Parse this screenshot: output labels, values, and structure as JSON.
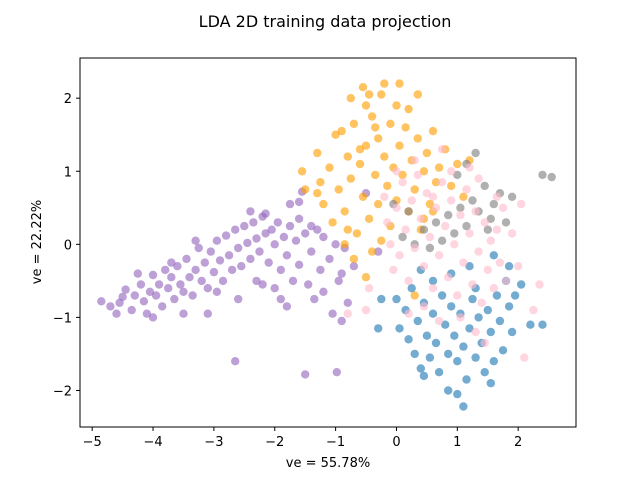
{
  "chart_data": {
    "type": "scatter",
    "title": "LDA 2D training data projection",
    "xlabel": "ve = 55.78%",
    "ylabel": "ve = 22.22%",
    "xlim": [
      -5.2,
      2.95
    ],
    "ylim": [
      -2.5,
      2.55
    ],
    "xticks": [
      -5,
      -4,
      -3,
      -2,
      -1,
      0,
      1,
      2
    ],
    "yticks": [
      -2,
      -1,
      0,
      1,
      2
    ],
    "grid": false,
    "legend": "none",
    "series": [
      {
        "color": "#9467bd",
        "points": [
          [
            -4.85,
            -0.78
          ],
          [
            -4.7,
            -0.85
          ],
          [
            -4.55,
            -0.8
          ],
          [
            -4.5,
            -0.72
          ],
          [
            -4.45,
            -0.62
          ],
          [
            -4.35,
            -0.9
          ],
          [
            -4.3,
            -0.7
          ],
          [
            -4.2,
            -0.55
          ],
          [
            -4.15,
            -0.78
          ],
          [
            -4.1,
            -0.95
          ],
          [
            -4.05,
            -0.65
          ],
          [
            -4.0,
            -0.42
          ],
          [
            -3.95,
            -0.7
          ],
          [
            -3.9,
            -0.55
          ],
          [
            -3.85,
            -0.85
          ],
          [
            -3.8,
            -0.35
          ],
          [
            -3.75,
            -0.6
          ],
          [
            -3.7,
            -0.45
          ],
          [
            -3.65,
            -0.75
          ],
          [
            -3.6,
            -0.3
          ],
          [
            -3.55,
            -0.55
          ],
          [
            -3.5,
            -0.65
          ],
          [
            -3.45,
            -0.2
          ],
          [
            -3.4,
            -0.45
          ],
          [
            -3.35,
            -0.7
          ],
          [
            -3.3,
            -0.35
          ],
          [
            -3.25,
            -0.05
          ],
          [
            -3.2,
            -0.5
          ],
          [
            -3.15,
            -0.25
          ],
          [
            -3.1,
            -0.6
          ],
          [
            -3.05,
            -0.1
          ],
          [
            -3.0,
            -0.38
          ],
          [
            -2.95,
            0.05
          ],
          [
            -2.9,
            -0.22
          ],
          [
            -2.85,
            -0.5
          ],
          [
            -2.8,
            0.12
          ],
          [
            -2.75,
            -0.15
          ],
          [
            -2.7,
            -0.35
          ],
          [
            -2.65,
            0.2
          ],
          [
            -2.6,
            -0.05
          ],
          [
            -2.55,
            -0.3
          ],
          [
            -2.5,
            0.25
          ],
          [
            -2.45,
            0.02
          ],
          [
            -2.4,
            -0.2
          ],
          [
            -2.35,
            0.3
          ],
          [
            -2.3,
            0.08
          ],
          [
            -2.25,
            -0.1
          ],
          [
            -2.2,
            0.38
          ],
          [
            -2.15,
            0.15
          ],
          [
            -2.1,
            -0.25
          ],
          [
            -2.05,
            0.2
          ],
          [
            -2.0,
            0.0
          ],
          [
            -1.95,
            0.3
          ],
          [
            -1.9,
            -0.35
          ],
          [
            -1.85,
            0.1
          ],
          [
            -1.8,
            -0.15
          ],
          [
            -1.75,
            0.25
          ],
          [
            -1.7,
            -0.5
          ],
          [
            -1.65,
            0.05
          ],
          [
            -1.6,
            -0.28
          ],
          [
            -1.5,
            0.15
          ],
          [
            -1.45,
            -0.55
          ],
          [
            -1.4,
            -0.1
          ],
          [
            -1.3,
            0.2
          ],
          [
            -1.25,
            -0.35
          ],
          [
            -1.2,
            -0.65
          ],
          [
            -1.1,
            -0.2
          ],
          [
            -1.05,
            -0.95
          ],
          [
            -0.95,
            -0.5
          ],
          [
            -0.9,
            -1.05
          ],
          [
            -0.85,
            -0.05
          ],
          [
            -2.65,
            -1.6
          ],
          [
            -1.5,
            -1.78
          ],
          [
            -0.98,
            -1.75
          ],
          [
            -3.1,
            -0.95
          ],
          [
            -4.0,
            -1.0
          ],
          [
            -3.7,
            -0.25
          ],
          [
            -3.3,
            0.05
          ],
          [
            -2.95,
            -0.65
          ],
          [
            -2.6,
            -0.75
          ],
          [
            -2.3,
            -0.5
          ],
          [
            -2.0,
            -0.6
          ],
          [
            -1.8,
            -0.85
          ],
          [
            -3.5,
            -0.95
          ],
          [
            -4.25,
            -0.4
          ],
          [
            -4.6,
            -0.95
          ],
          [
            -2.4,
            0.45
          ],
          [
            -2.15,
            0.42
          ],
          [
            -1.6,
            0.35
          ],
          [
            -1.4,
            0.25
          ],
          [
            -1.2,
            0.1
          ],
          [
            -1.0,
            0.0
          ],
          [
            -0.9,
            -0.4
          ],
          [
            -0.8,
            -0.8
          ],
          [
            -1.35,
            -0.75
          ],
          [
            -1.9,
            -0.75
          ],
          [
            -2.2,
            -0.55
          ],
          [
            -1.75,
            0.55
          ],
          [
            -1.55,
            0.72
          ],
          [
            -1.6,
            0.58
          ],
          [
            -0.5,
            0.7
          ],
          [
            -0.3,
            -0.1
          ],
          [
            -0.7,
            -0.3
          ]
        ]
      },
      {
        "color": "#ff9e00",
        "points": [
          [
            -1.5,
            0.75
          ],
          [
            -1.3,
            1.25
          ],
          [
            -1.25,
            0.85
          ],
          [
            -1.2,
            0.55
          ],
          [
            -1.1,
            1.05
          ],
          [
            -1.05,
            0.3
          ],
          [
            -1.0,
            1.5
          ],
          [
            -0.95,
            0.75
          ],
          [
            -0.9,
            1.55
          ],
          [
            -0.85,
            0.45
          ],
          [
            -0.8,
            1.2
          ],
          [
            -0.75,
            0.9
          ],
          [
            -0.7,
            1.65
          ],
          [
            -0.65,
            0.15
          ],
          [
            -0.6,
            1.1
          ],
          [
            -0.55,
            0.65
          ],
          [
            -0.5,
            1.9
          ],
          [
            -0.5,
            1.35
          ],
          [
            -0.45,
            0.35
          ],
          [
            -0.4,
            1.75
          ],
          [
            -0.35,
            0.95
          ],
          [
            -0.3,
            1.45
          ],
          [
            -0.3,
            0.55
          ],
          [
            -0.25,
            2.05
          ],
          [
            -0.2,
            1.2
          ],
          [
            -0.15,
            0.8
          ],
          [
            -0.1,
            1.65
          ],
          [
            -0.1,
            0.25
          ],
          [
            -0.05,
            1.05
          ],
          [
            0.0,
            1.9
          ],
          [
            0.0,
            0.6
          ],
          [
            0.05,
            1.35
          ],
          [
            0.1,
            0.95
          ],
          [
            0.15,
            1.6
          ],
          [
            0.2,
            0.45
          ],
          [
            0.25,
            1.15
          ],
          [
            0.3,
            0.75
          ],
          [
            0.35,
            1.45
          ],
          [
            0.4,
            0.2
          ],
          [
            0.45,
            1.0
          ],
          [
            0.5,
            1.25
          ],
          [
            0.55,
            0.55
          ],
          [
            0.6,
            1.55
          ],
          [
            0.65,
            0.85
          ],
          [
            0.7,
            1.05
          ],
          [
            0.8,
            1.3
          ],
          [
            0.9,
            0.8
          ],
          [
            1.0,
            1.1
          ],
          [
            1.1,
            0.65
          ],
          [
            -0.85,
            0.0
          ],
          [
            -0.7,
            -0.2
          ],
          [
            -0.5,
            -0.45
          ],
          [
            0.3,
            -0.7
          ],
          [
            -0.2,
            2.2
          ],
          [
            -0.45,
            2.05
          ],
          [
            -0.75,
            2.0
          ],
          [
            -0.55,
            2.15
          ],
          [
            -1.55,
            1.0
          ],
          [
            -1.3,
            0.7
          ],
          [
            1.2,
            1.15
          ],
          [
            0.6,
            0.45
          ],
          [
            0.35,
            2.05
          ],
          [
            0.05,
            2.2
          ],
          [
            0.2,
            1.85
          ],
          [
            -0.35,
            1.6
          ],
          [
            -0.6,
            1.3
          ],
          [
            -0.8,
            0.2
          ],
          [
            -0.25,
            0.05
          ],
          [
            -0.4,
            -0.1
          ],
          [
            0.45,
            0.35
          ]
        ]
      },
      {
        "color": "#1f77b4",
        "points": [
          [
            0.0,
            -0.75
          ],
          [
            0.05,
            -1.15
          ],
          [
            0.15,
            -0.9
          ],
          [
            0.2,
            -1.3
          ],
          [
            0.25,
            -0.6
          ],
          [
            0.3,
            -1.5
          ],
          [
            0.35,
            -1.05
          ],
          [
            0.4,
            -1.7
          ],
          [
            0.45,
            -0.8
          ],
          [
            0.5,
            -1.25
          ],
          [
            0.55,
            -1.55
          ],
          [
            0.6,
            -0.95
          ],
          [
            0.65,
            -1.35
          ],
          [
            0.7,
            -1.75
          ],
          [
            0.75,
            -0.7
          ],
          [
            0.8,
            -1.1
          ],
          [
            0.85,
            -1.5
          ],
          [
            0.9,
            -0.85
          ],
          [
            0.95,
            -1.25
          ],
          [
            1.0,
            -1.6
          ],
          [
            1.05,
            -0.95
          ],
          [
            1.1,
            -1.4
          ],
          [
            1.15,
            -1.85
          ],
          [
            1.2,
            -1.15
          ],
          [
            1.25,
            -0.75
          ],
          [
            1.3,
            -1.55
          ],
          [
            1.35,
            -1.0
          ],
          [
            1.4,
            -1.35
          ],
          [
            1.45,
            -1.75
          ],
          [
            1.5,
            -0.9
          ],
          [
            1.55,
            -1.2
          ],
          [
            1.6,
            -1.6
          ],
          [
            1.65,
            -0.7
          ],
          [
            1.7,
            -1.05
          ],
          [
            1.75,
            -1.45
          ],
          [
            1.8,
            -0.5
          ],
          [
            1.85,
            -0.85
          ],
          [
            1.9,
            -1.2
          ],
          [
            2.05,
            -0.55
          ],
          [
            2.2,
            -1.1
          ],
          [
            2.4,
            -1.1
          ],
          [
            1.1,
            -2.22
          ],
          [
            1.0,
            -2.05
          ],
          [
            0.45,
            -1.8
          ],
          [
            1.55,
            -1.9
          ],
          [
            0.85,
            -2.0
          ],
          [
            -0.3,
            -1.15
          ],
          [
            -0.25,
            -0.75
          ],
          [
            1.6,
            -0.15
          ],
          [
            1.85,
            -0.3
          ],
          [
            1.95,
            -0.7
          ],
          [
            1.3,
            -0.6
          ],
          [
            0.6,
            -0.5
          ],
          [
            0.9,
            -0.4
          ],
          [
            1.2,
            -0.3
          ],
          [
            0.4,
            -0.35
          ]
        ]
      },
      {
        "color": "#7f7f7f",
        "points": [
          [
            2.55,
            0.92
          ],
          [
            2.4,
            0.95
          ],
          [
            1.7,
            0.7
          ],
          [
            1.6,
            0.55
          ],
          [
            1.55,
            0.35
          ],
          [
            1.45,
            0.8
          ],
          [
            1.35,
            0.45
          ],
          [
            1.25,
            0.6
          ],
          [
            1.15,
            0.25
          ],
          [
            1.05,
            0.5
          ],
          [
            0.95,
            0.15
          ],
          [
            0.85,
            0.4
          ],
          [
            0.75,
            0.05
          ],
          [
            0.65,
            0.3
          ],
          [
            0.55,
            -0.05
          ],
          [
            0.45,
            0.2
          ],
          [
            0.3,
            0.0
          ],
          [
            0.2,
            0.45
          ],
          [
            0.1,
            0.1
          ],
          [
            -0.05,
            0.55
          ],
          [
            1.3,
            1.25
          ],
          [
            1.15,
            1.1
          ],
          [
            1.0,
            0.95
          ],
          [
            1.8,
            0.3
          ],
          [
            1.9,
            0.65
          ],
          [
            1.5,
            0.2
          ]
        ]
      },
      {
        "color": "#ffbbcc",
        "points": [
          [
            -0.2,
            0.65
          ],
          [
            -0.15,
            0.3
          ],
          [
            -0.1,
            0.0
          ],
          [
            -0.05,
            -0.35
          ],
          [
            0.0,
            0.5
          ],
          [
            0.05,
            -0.15
          ],
          [
            0.1,
            0.85
          ],
          [
            0.15,
            0.2
          ],
          [
            0.2,
            -0.5
          ],
          [
            0.25,
            0.6
          ],
          [
            0.3,
            -0.05
          ],
          [
            0.35,
            0.95
          ],
          [
            0.4,
            0.35
          ],
          [
            0.45,
            -0.3
          ],
          [
            0.5,
            0.7
          ],
          [
            0.55,
            0.1
          ],
          [
            0.6,
            -0.6
          ],
          [
            0.65,
            0.5
          ],
          [
            0.7,
            -0.15
          ],
          [
            0.75,
            0.85
          ],
          [
            0.8,
            0.25
          ],
          [
            0.85,
            -0.45
          ],
          [
            0.9,
            0.6
          ],
          [
            0.95,
            0.0
          ],
          [
            1.0,
            -0.7
          ],
          [
            1.05,
            0.4
          ],
          [
            1.1,
            -0.25
          ],
          [
            1.15,
            0.75
          ],
          [
            1.2,
            0.15
          ],
          [
            1.25,
            -0.55
          ],
          [
            1.3,
            0.45
          ],
          [
            1.35,
            -0.1
          ],
          [
            1.4,
            -0.8
          ],
          [
            1.45,
            0.3
          ],
          [
            1.5,
            -0.35
          ],
          [
            1.55,
            0.05
          ],
          [
            1.6,
            -0.6
          ],
          [
            1.65,
            0.2
          ],
          [
            1.7,
            -0.25
          ],
          [
            1.75,
            0.5
          ],
          [
            1.8,
            -0.5
          ],
          [
            1.9,
            0.15
          ],
          [
            2.0,
            -0.3
          ],
          [
            2.05,
            0.55
          ],
          [
            2.1,
            -1.55
          ],
          [
            2.25,
            -0.9
          ],
          [
            2.35,
            -0.55
          ],
          [
            -0.5,
            -0.9
          ],
          [
            -0.45,
            -0.6
          ],
          [
            -0.8,
            -0.95
          ],
          [
            0.6,
            0.65
          ],
          [
            0.9,
            1.0
          ],
          [
            1.2,
            1.05
          ],
          [
            0.3,
            1.15
          ],
          [
            0.0,
            1.0
          ],
          [
            0.75,
            1.3
          ],
          [
            1.35,
            0.9
          ],
          [
            1.65,
            0.65
          ],
          [
            1.05,
            -1.0
          ],
          [
            0.7,
            -1.05
          ],
          [
            1.3,
            -1.2
          ],
          [
            0.45,
            -0.85
          ],
          [
            1.45,
            -1.35
          ],
          [
            0.2,
            -0.95
          ]
        ]
      }
    ]
  }
}
